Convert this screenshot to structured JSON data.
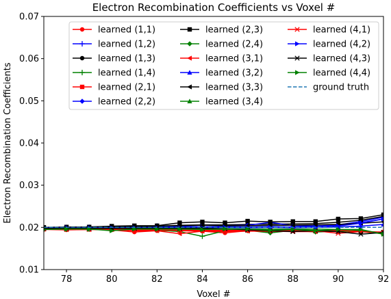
{
  "chart_data": {
    "type": "line",
    "title": "Electron Recombination Coefficients vs Voxel #",
    "xlabel": "Voxel #",
    "ylabel": "Electron Recombination Coefficients",
    "xlim": [
      77,
      92
    ],
    "ylim": [
      0.01,
      0.07
    ],
    "xticks": [
      78,
      80,
      82,
      84,
      86,
      88,
      90,
      92
    ],
    "xtick_labels": [
      "78",
      "80",
      "82",
      "84",
      "86",
      "88",
      "90",
      "92"
    ],
    "yticks": [
      0.01,
      0.02,
      0.03,
      0.04,
      0.05,
      0.06,
      0.07
    ],
    "ytick_labels": [
      "0.01",
      "0.02",
      "0.03",
      "0.04",
      "0.05",
      "0.06",
      "0.07"
    ],
    "grid": false,
    "legend_position": "top-right",
    "x": [
      77,
      78,
      79,
      80,
      81,
      82,
      83,
      84,
      85,
      86,
      87,
      88,
      89,
      90,
      91,
      92
    ],
    "series": [
      {
        "name": "learned (1,1)",
        "color": "#ff0000",
        "marker": "circle",
        "values": [
          0.0195,
          0.0194,
          0.0195,
          0.0194,
          0.0189,
          0.0192,
          0.0192,
          0.0191,
          0.0187,
          0.0192,
          0.0191,
          0.0192,
          0.0191,
          0.0192,
          0.019,
          0.0186
        ]
      },
      {
        "name": "learned (1,2)",
        "color": "#0000ff",
        "marker": "plus",
        "values": [
          0.0199,
          0.02,
          0.02,
          0.0201,
          0.02,
          0.0201,
          0.0202,
          0.0201,
          0.0202,
          0.0201,
          0.0202,
          0.0201,
          0.0203,
          0.0206,
          0.0214,
          0.0224
        ]
      },
      {
        "name": "learned (1,3)",
        "color": "#000000",
        "marker": "circle",
        "values": [
          0.0199,
          0.02,
          0.0201,
          0.0202,
          0.0201,
          0.0203,
          0.0205,
          0.0206,
          0.0206,
          0.0207,
          0.0208,
          0.0208,
          0.0209,
          0.0212,
          0.0217,
          0.0226
        ]
      },
      {
        "name": "learned (1,4)",
        "color": "#008000",
        "marker": "plus",
        "values": [
          0.0195,
          0.0196,
          0.0196,
          0.0195,
          0.0196,
          0.0194,
          0.019,
          0.0179,
          0.0192,
          0.0193,
          0.019,
          0.0194,
          0.0193,
          0.0192,
          0.0191,
          0.0188
        ]
      },
      {
        "name": "learned (2,1)",
        "color": "#ff0000",
        "marker": "square",
        "values": [
          0.0197,
          0.0197,
          0.0197,
          0.0196,
          0.0193,
          0.0194,
          0.0193,
          0.0193,
          0.0192,
          0.0193,
          0.0192,
          0.0193,
          0.0191,
          0.0191,
          0.019,
          0.0189
        ]
      },
      {
        "name": "learned (2,2)",
        "color": "#0000ff",
        "marker": "diamond",
        "values": [
          0.02,
          0.02,
          0.0201,
          0.02,
          0.0201,
          0.0204,
          0.0203,
          0.0205,
          0.0204,
          0.0205,
          0.0212,
          0.0204,
          0.0203,
          0.0205,
          0.0211,
          0.022
        ]
      },
      {
        "name": "learned (2,3)",
        "color": "#000000",
        "marker": "square",
        "values": [
          0.02,
          0.0201,
          0.0201,
          0.0203,
          0.0204,
          0.0204,
          0.0211,
          0.0213,
          0.0211,
          0.0215,
          0.0213,
          0.0214,
          0.0214,
          0.022,
          0.0221,
          0.023
        ]
      },
      {
        "name": "learned (2,4)",
        "color": "#008000",
        "marker": "diamond",
        "values": [
          0.0196,
          0.0196,
          0.0196,
          0.0196,
          0.0195,
          0.0195,
          0.0195,
          0.0194,
          0.0194,
          0.0193,
          0.0187,
          0.0193,
          0.0189,
          0.0191,
          0.019,
          0.0185
        ]
      },
      {
        "name": "learned (3,1)",
        "color": "#ff0000",
        "marker": "tri-left",
        "values": [
          0.0196,
          0.0195,
          0.0195,
          0.0195,
          0.0192,
          0.0192,
          0.0185,
          0.0191,
          0.019,
          0.0191,
          0.0191,
          0.019,
          0.019,
          0.0193,
          0.019,
          0.0187
        ]
      },
      {
        "name": "learned (3,2)",
        "color": "#0000ff",
        "marker": "tri-up",
        "values": [
          0.0199,
          0.0199,
          0.0199,
          0.0199,
          0.0199,
          0.0199,
          0.0199,
          0.0199,
          0.02,
          0.0199,
          0.02,
          0.02,
          0.02,
          0.0201,
          0.0203,
          0.0207
        ]
      },
      {
        "name": "learned (3,3)",
        "color": "#000000",
        "marker": "tri-left",
        "values": [
          0.02,
          0.02,
          0.0201,
          0.0202,
          0.0202,
          0.0203,
          0.0204,
          0.0205,
          0.0204,
          0.0204,
          0.0205,
          0.0205,
          0.0206,
          0.0207,
          0.021,
          0.0213
        ]
      },
      {
        "name": "learned (3,4)",
        "color": "#008000",
        "marker": "tri-up",
        "values": [
          0.0196,
          0.0196,
          0.0196,
          0.0196,
          0.0197,
          0.0196,
          0.0197,
          0.0195,
          0.0197,
          0.0196,
          0.0196,
          0.0196,
          0.0196,
          0.0195,
          0.0193,
          0.0184
        ]
      },
      {
        "name": "learned (4,1)",
        "color": "#ff0000",
        "marker": "x",
        "values": [
          0.0196,
          0.0195,
          0.0195,
          0.0195,
          0.0195,
          0.0195,
          0.0194,
          0.0194,
          0.0193,
          0.0193,
          0.0192,
          0.0192,
          0.0192,
          0.0186,
          0.019,
          0.0187
        ]
      },
      {
        "name": "learned (4,2)",
        "color": "#0000ff",
        "marker": "tri-right",
        "values": [
          0.0199,
          0.0199,
          0.0199,
          0.0199,
          0.0199,
          0.0199,
          0.0199,
          0.0199,
          0.02,
          0.0199,
          0.02,
          0.0199,
          0.02,
          0.0203,
          0.021,
          0.022
        ]
      },
      {
        "name": "learned (4,3)",
        "color": "#000000",
        "marker": "x",
        "values": [
          0.0198,
          0.0198,
          0.0198,
          0.0198,
          0.0198,
          0.0198,
          0.0198,
          0.0198,
          0.0197,
          0.0194,
          0.0192,
          0.019,
          0.0192,
          0.019,
          0.0184,
          0.0188
        ]
      },
      {
        "name": "learned (4,4)",
        "color": "#008000",
        "marker": "tri-right",
        "values": [
          0.0195,
          0.0196,
          0.0196,
          0.0192,
          0.0196,
          0.0196,
          0.0196,
          0.0195,
          0.0196,
          0.0196,
          0.0193,
          0.0195,
          0.0192,
          0.0195,
          0.0195,
          0.0184
        ]
      },
      {
        "name": "ground truth",
        "color": "#1f77b4",
        "marker": "none",
        "dashed": true,
        "values": [
          0.02,
          0.02,
          0.02,
          0.02,
          0.02,
          0.02,
          0.02,
          0.02,
          0.02,
          0.02,
          0.02,
          0.02,
          0.02,
          0.02,
          0.02,
          0.02
        ]
      }
    ]
  }
}
